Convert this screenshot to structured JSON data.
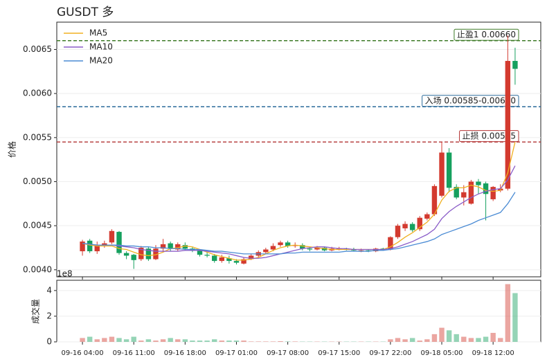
{
  "chart_data": [
    {
      "type": "candlestick",
      "title": "GUSDT  多",
      "ylabel": "价格",
      "open": [
        0.00421,
        0.00433,
        0.00421,
        0.00428,
        0.00431,
        0.00443,
        0.00419,
        0.00417,
        0.00412,
        0.00424,
        0.00412,
        0.00424,
        0.0043,
        0.00423,
        0.00428,
        0.00424,
        0.00422,
        0.00417,
        0.00416,
        0.0041,
        0.00413,
        0.0041,
        0.00407,
        0.00412,
        0.00416,
        0.0042,
        0.00423,
        0.00428,
        0.00431,
        0.00427,
        0.00428,
        0.00424,
        0.00423,
        0.00425,
        0.00422,
        0.00424,
        0.00424,
        0.00423,
        0.00422,
        0.00422,
        0.00421,
        0.00424,
        0.00423,
        0.00437,
        0.00447,
        0.00452,
        0.00446,
        0.00458,
        0.00463,
        0.00484,
        0.00533,
        0.00494,
        0.00482,
        0.00475,
        0.005,
        0.00498,
        0.0048,
        0.0049,
        0.00492,
        0.00637
      ],
      "high": [
        0.00434,
        0.00435,
        0.00432,
        0.00433,
        0.00446,
        0.00444,
        0.00421,
        0.00418,
        0.00427,
        0.00426,
        0.00428,
        0.00435,
        0.00432,
        0.00431,
        0.00431,
        0.00426,
        0.00423,
        0.0042,
        0.00418,
        0.00417,
        0.00416,
        0.00412,
        0.00414,
        0.00418,
        0.00422,
        0.00425,
        0.0043,
        0.00433,
        0.00433,
        0.00431,
        0.0043,
        0.00426,
        0.00427,
        0.00426,
        0.00426,
        0.00426,
        0.00425,
        0.00425,
        0.00424,
        0.00423,
        0.00425,
        0.00425,
        0.00438,
        0.00452,
        0.00455,
        0.00454,
        0.00461,
        0.00465,
        0.00497,
        0.00545,
        0.00538,
        0.00497,
        0.00496,
        0.00502,
        0.00503,
        0.005,
        0.00495,
        0.00497,
        0.00666,
        0.00652
      ],
      "low": [
        0.00416,
        0.00419,
        0.00418,
        0.00425,
        0.00429,
        0.00417,
        0.00412,
        0.00401,
        0.0041,
        0.0041,
        0.00411,
        0.0042,
        0.00421,
        0.00421,
        0.00422,
        0.0042,
        0.00415,
        0.00414,
        0.00408,
        0.00408,
        0.00407,
        0.00406,
        0.00406,
        0.00411,
        0.00414,
        0.00418,
        0.00421,
        0.00426,
        0.00425,
        0.00425,
        0.00422,
        0.00421,
        0.00422,
        0.00421,
        0.00421,
        0.00422,
        0.00422,
        0.00421,
        0.0042,
        0.0042,
        0.0042,
        0.00422,
        0.00422,
        0.00435,
        0.00444,
        0.00443,
        0.00444,
        0.00456,
        0.00461,
        0.00482,
        0.00488,
        0.0048,
        0.00473,
        0.00474,
        0.00486,
        0.00456,
        0.00478,
        0.00488,
        0.0049,
        0.0061
      ],
      "close": [
        0.00432,
        0.00421,
        0.00428,
        0.0043,
        0.00444,
        0.00419,
        0.00416,
        0.00411,
        0.00425,
        0.00412,
        0.00424,
        0.00429,
        0.00424,
        0.00429,
        0.00424,
        0.00422,
        0.00417,
        0.00416,
        0.0041,
        0.00414,
        0.0041,
        0.00408,
        0.00412,
        0.00416,
        0.0042,
        0.00423,
        0.00427,
        0.00431,
        0.00427,
        0.00428,
        0.00424,
        0.00423,
        0.00425,
        0.00422,
        0.00424,
        0.00424,
        0.00423,
        0.00422,
        0.00422,
        0.00421,
        0.00424,
        0.00423,
        0.00437,
        0.0045,
        0.00452,
        0.00445,
        0.00459,
        0.00463,
        0.00495,
        0.00533,
        0.00493,
        0.00482,
        0.00488,
        0.005,
        0.00496,
        0.00486,
        0.00494,
        0.00492,
        0.00637,
        0.00628
      ],
      "up_color": "#d33a2f",
      "down_color": "#15a05e",
      "series": [
        {
          "name": "MA5",
          "color": "#f0b020",
          "values": [
            0.0043,
            0.00428,
            0.00427,
            0.00427,
            0.00427,
            0.00424,
            0.00423,
            0.0042,
            0.00417,
            0.00416,
            0.00417,
            0.0042,
            0.00424,
            0.00425,
            0.00427,
            0.00426,
            0.00423,
            0.0042,
            0.00417,
            0.00415,
            0.00413,
            0.00411,
            0.00411,
            0.00412,
            0.00414,
            0.00418,
            0.00422,
            0.00425,
            0.00427,
            0.00428,
            0.00427,
            0.00426,
            0.00425,
            0.00424,
            0.00423,
            0.00423,
            0.00423,
            0.00423,
            0.00423,
            0.00423,
            0.00423,
            0.00423,
            0.00426,
            0.00431,
            0.00437,
            0.00442,
            0.00448,
            0.00454,
            0.00463,
            0.00479,
            0.00489,
            0.00493,
            0.00493,
            0.00496,
            0.00494,
            0.0049,
            0.00489,
            0.0049,
            0.0051,
            0.00545
          ]
        },
        {
          "name": "MA10",
          "color": "#8a5cc8",
          "values": [
            0.0043,
            0.00429,
            0.00428,
            0.00428,
            0.00428,
            0.00427,
            0.00426,
            0.00425,
            0.00423,
            0.00422,
            0.00421,
            0.00421,
            0.00421,
            0.00421,
            0.00422,
            0.00422,
            0.00422,
            0.00421,
            0.0042,
            0.00419,
            0.00418,
            0.00416,
            0.00414,
            0.00413,
            0.00413,
            0.00414,
            0.00416,
            0.00418,
            0.0042,
            0.00422,
            0.00424,
            0.00425,
            0.00426,
            0.00426,
            0.00425,
            0.00424,
            0.00424,
            0.00423,
            0.00423,
            0.00423,
            0.00423,
            0.00423,
            0.00424,
            0.00426,
            0.00429,
            0.00432,
            0.00436,
            0.0044,
            0.00446,
            0.00458,
            0.00466,
            0.00472,
            0.00477,
            0.00482,
            0.00486,
            0.00489,
            0.00491,
            0.00492,
            0.00502,
            0.00518
          ]
        },
        {
          "name": "MA20",
          "color": "#4a8bd4",
          "values": [
            0.0043,
            0.00429,
            0.00428,
            0.00428,
            0.00428,
            0.00428,
            0.00427,
            0.00427,
            0.00426,
            0.00426,
            0.00425,
            0.00425,
            0.00424,
            0.00424,
            0.00423,
            0.00423,
            0.00423,
            0.00422,
            0.00421,
            0.00421,
            0.0042,
            0.00419,
            0.00418,
            0.00418,
            0.00418,
            0.00418,
            0.00418,
            0.00418,
            0.00419,
            0.00419,
            0.0042,
            0.0042,
            0.0042,
            0.0042,
            0.0042,
            0.0042,
            0.00421,
            0.00421,
            0.00421,
            0.00421,
            0.00422,
            0.00422,
            0.00423,
            0.00424,
            0.00426,
            0.00428,
            0.0043,
            0.00432,
            0.00435,
            0.0044,
            0.00443,
            0.00446,
            0.00449,
            0.00452,
            0.00456,
            0.00459,
            0.00462,
            0.00465,
            0.00475,
            0.00488
          ]
        }
      ],
      "hlines": [
        {
          "label": "止盈1 0.00660",
          "value": 0.0066,
          "color": "#3d7a26"
        },
        {
          "label": "入场 0.00585-0.00600",
          "value": 0.00585,
          "color": "#2a6a9a"
        },
        {
          "label": "止损 0.00545",
          "value": 0.00545,
          "color": "#b23232"
        }
      ],
      "legend": "upper left",
      "xlim": [
        -3.5,
        62.5
      ],
      "ylim": [
        0.00392,
        0.00681
      ],
      "yticks": [
        {
          "value": 0.004,
          "label": "0.0040"
        },
        {
          "value": 0.0045,
          "label": "0.0045"
        },
        {
          "value": 0.005,
          "label": "0.0050"
        },
        {
          "value": 0.0055,
          "label": "0.0055"
        },
        {
          "value": 0.006,
          "label": "0.0060"
        },
        {
          "value": 0.0065,
          "label": "0.0065"
        }
      ],
      "grid": true
    },
    {
      "type": "bar",
      "ylabel": "成交量",
      "offset_label": "1e8",
      "values": [
        0.3,
        0.4,
        0.2,
        0.3,
        0.4,
        0.3,
        0.2,
        0.4,
        0.1,
        0.2,
        0.1,
        0.2,
        0.3,
        0.2,
        0.2,
        0.1,
        0.1,
        0.1,
        0.2,
        0.1,
        0.1,
        0.1,
        0.1,
        0.03,
        0.03,
        0.03,
        0.03,
        0.05,
        0.03,
        0.03,
        0.02,
        0.02,
        0.02,
        0.02,
        0.02,
        0.02,
        0.02,
        0.02,
        0.02,
        0.02,
        0.02,
        0.02,
        0.2,
        0.3,
        0.2,
        0.3,
        0.1,
        0.2,
        0.6,
        1.1,
        0.9,
        0.6,
        0.4,
        0.3,
        0.3,
        0.4,
        0.7,
        0.3,
        4.5,
        3.8
      ],
      "xlim": [
        -3.5,
        62.5
      ],
      "ylim": [
        0,
        4.8
      ],
      "yticks": [
        0,
        2,
        4
      ],
      "xticks": [
        {
          "value": 0,
          "label": "09-16 04:00"
        },
        {
          "value": 7,
          "label": "09-16 11:00"
        },
        {
          "value": 14,
          "label": "09-16 18:00"
        },
        {
          "value": 21,
          "label": "09-17 01:00"
        },
        {
          "value": 28,
          "label": "09-17 08:00"
        },
        {
          "value": 35,
          "label": "09-17 15:00"
        },
        {
          "value": 42,
          "label": "09-17 22:00"
        },
        {
          "value": 49,
          "label": "09-18 05:00"
        },
        {
          "value": 56,
          "label": "09-18 12:00"
        }
      ],
      "grid": true
    }
  ]
}
